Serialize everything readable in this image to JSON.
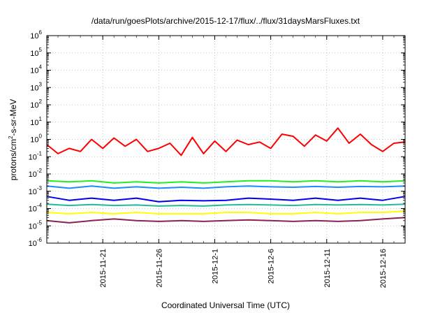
{
  "chart_data": {
    "type": "line",
    "title": "/data/run/goesPlots/archive/2015-12-17/flux/../flux/31daysMarsFluxes.txt",
    "xlabel": "Coordinated Universal Time (UTC)",
    "ylabel_parts": [
      "protons/cm",
      "2",
      "-s-sr-MeV"
    ],
    "y_scale": "log",
    "ylim": [
      1e-06,
      1000000.0
    ],
    "xlim": [
      "2015-11-16",
      "2015-12-18"
    ],
    "grid": true,
    "legend": "none",
    "x_ticks": [
      "2015-11-21",
      "2015-11-26",
      "2015-12-1",
      "2015-12-6",
      "2015-12-11",
      "2015-12-16"
    ],
    "x_tick_dates": [
      "2015-11-21",
      "2015-11-26",
      "2015-12-01",
      "2015-12-06",
      "2015-12-11",
      "2015-12-16"
    ],
    "y_ticks": [
      {
        "base": "10",
        "exp": "-6",
        "value": 1e-06
      },
      {
        "base": "10",
        "exp": "-5",
        "value": 1e-05
      },
      {
        "base": "10",
        "exp": "-4",
        "value": 0.0001
      },
      {
        "base": "10",
        "exp": "-3",
        "value": 0.001
      },
      {
        "base": "10",
        "exp": "-2",
        "value": 0.01
      },
      {
        "base": "10",
        "exp": "-1",
        "value": 0.1
      },
      {
        "base": "10",
        "exp": "0",
        "value": 1
      },
      {
        "base": "10",
        "exp": "1",
        "value": 10
      },
      {
        "base": "10",
        "exp": "2",
        "value": 100
      },
      {
        "base": "10",
        "exp": "3",
        "value": 1000
      },
      {
        "base": "10",
        "exp": "4",
        "value": 10000
      },
      {
        "base": "10",
        "exp": "5",
        "value": 100000
      },
      {
        "base": "10",
        "exp": "6",
        "value": 1000000
      }
    ],
    "series": [
      {
        "color": "#ff0000",
        "values": [
          {
            "x": "2015-11-16",
            "y": 0.5
          },
          {
            "x": "2015-11-17",
            "y": 0.15
          },
          {
            "x": "2015-11-18",
            "y": 0.3
          },
          {
            "x": "2015-11-19",
            "y": 0.2
          },
          {
            "x": "2015-11-20",
            "y": 1.0
          },
          {
            "x": "2015-11-21",
            "y": 0.3
          },
          {
            "x": "2015-11-22",
            "y": 1.2
          },
          {
            "x": "2015-11-23",
            "y": 0.4
          },
          {
            "x": "2015-11-24",
            "y": 1.0
          },
          {
            "x": "2015-11-25",
            "y": 0.2
          },
          {
            "x": "2015-11-26",
            "y": 0.3
          },
          {
            "x": "2015-11-27",
            "y": 0.6
          },
          {
            "x": "2015-11-28",
            "y": 0.12
          },
          {
            "x": "2015-11-29",
            "y": 1.3
          },
          {
            "x": "2015-11-30",
            "y": 0.15
          },
          {
            "x": "2015-12-01",
            "y": 0.8
          },
          {
            "x": "2015-12-02",
            "y": 0.2
          },
          {
            "x": "2015-12-03",
            "y": 0.9
          },
          {
            "x": "2015-12-04",
            "y": 0.5
          },
          {
            "x": "2015-12-05",
            "y": 0.7
          },
          {
            "x": "2015-12-06",
            "y": 0.3
          },
          {
            "x": "2015-12-07",
            "y": 2.0
          },
          {
            "x": "2015-12-08",
            "y": 1.5
          },
          {
            "x": "2015-12-09",
            "y": 0.4
          },
          {
            "x": "2015-12-10",
            "y": 1.8
          },
          {
            "x": "2015-12-11",
            "y": 0.8
          },
          {
            "x": "2015-12-12",
            "y": 4.5
          },
          {
            "x": "2015-12-13",
            "y": 0.6
          },
          {
            "x": "2015-12-14",
            "y": 2.0
          },
          {
            "x": "2015-12-15",
            "y": 0.5
          },
          {
            "x": "2015-12-16",
            "y": 0.2
          },
          {
            "x": "2015-12-17",
            "y": 0.6
          },
          {
            "x": "2015-12-18",
            "y": 0.7
          }
        ]
      },
      {
        "color": "#22ee22",
        "values": [
          {
            "x": "2015-11-16",
            "y": 0.004
          },
          {
            "x": "2015-11-18",
            "y": 0.0035
          },
          {
            "x": "2015-11-20",
            "y": 0.004
          },
          {
            "x": "2015-11-22",
            "y": 0.003
          },
          {
            "x": "2015-11-24",
            "y": 0.0035
          },
          {
            "x": "2015-11-26",
            "y": 0.003
          },
          {
            "x": "2015-11-28",
            "y": 0.0035
          },
          {
            "x": "2015-11-30",
            "y": 0.003
          },
          {
            "x": "2015-12-02",
            "y": 0.0035
          },
          {
            "x": "2015-12-04",
            "y": 0.004
          },
          {
            "x": "2015-12-06",
            "y": 0.004
          },
          {
            "x": "2015-12-08",
            "y": 0.0035
          },
          {
            "x": "2015-12-10",
            "y": 0.004
          },
          {
            "x": "2015-12-12",
            "y": 0.0035
          },
          {
            "x": "2015-12-14",
            "y": 0.004
          },
          {
            "x": "2015-12-16",
            "y": 0.0035
          },
          {
            "x": "2015-12-18",
            "y": 0.004
          }
        ]
      },
      {
        "color": "#1a8cff",
        "values": [
          {
            "x": "2015-11-16",
            "y": 0.002
          },
          {
            "x": "2015-11-18",
            "y": 0.0015
          },
          {
            "x": "2015-11-20",
            "y": 0.002
          },
          {
            "x": "2015-11-22",
            "y": 0.0015
          },
          {
            "x": "2015-11-24",
            "y": 0.0018
          },
          {
            "x": "2015-11-26",
            "y": 0.0015
          },
          {
            "x": "2015-11-28",
            "y": 0.0017
          },
          {
            "x": "2015-11-30",
            "y": 0.0015
          },
          {
            "x": "2015-12-02",
            "y": 0.0018
          },
          {
            "x": "2015-12-04",
            "y": 0.002
          },
          {
            "x": "2015-12-06",
            "y": 0.0018
          },
          {
            "x": "2015-12-08",
            "y": 0.0017
          },
          {
            "x": "2015-12-10",
            "y": 0.0019
          },
          {
            "x": "2015-12-12",
            "y": 0.0017
          },
          {
            "x": "2015-12-14",
            "y": 0.0019
          },
          {
            "x": "2015-12-16",
            "y": 0.0018
          },
          {
            "x": "2015-12-18",
            "y": 0.002
          }
        ]
      },
      {
        "color": "#0000ee",
        "values": [
          {
            "x": "2015-11-16",
            "y": 0.0005
          },
          {
            "x": "2015-11-18",
            "y": 0.0003
          },
          {
            "x": "2015-11-20",
            "y": 0.0004
          },
          {
            "x": "2015-11-22",
            "y": 0.0003
          },
          {
            "x": "2015-11-24",
            "y": 0.0004
          },
          {
            "x": "2015-11-26",
            "y": 0.00025
          },
          {
            "x": "2015-11-28",
            "y": 0.0003
          },
          {
            "x": "2015-11-30",
            "y": 0.00028
          },
          {
            "x": "2015-12-02",
            "y": 0.0003
          },
          {
            "x": "2015-12-04",
            "y": 0.0004
          },
          {
            "x": "2015-12-06",
            "y": 0.00035
          },
          {
            "x": "2015-12-08",
            "y": 0.0003
          },
          {
            "x": "2015-12-10",
            "y": 0.0004
          },
          {
            "x": "2015-12-12",
            "y": 0.0003
          },
          {
            "x": "2015-12-14",
            "y": 0.0004
          },
          {
            "x": "2015-12-16",
            "y": 0.0003
          },
          {
            "x": "2015-12-18",
            "y": 0.0005
          }
        ]
      },
      {
        "color": "#22bb99",
        "values": [
          {
            "x": "2015-11-16",
            "y": 0.00018
          },
          {
            "x": "2015-11-18",
            "y": 0.00015
          },
          {
            "x": "2015-11-20",
            "y": 0.00017
          },
          {
            "x": "2015-11-22",
            "y": 0.00015
          },
          {
            "x": "2015-11-24",
            "y": 0.00016
          },
          {
            "x": "2015-11-26",
            "y": 0.00014
          },
          {
            "x": "2015-11-28",
            "y": 0.00015
          },
          {
            "x": "2015-11-30",
            "y": 0.00014
          },
          {
            "x": "2015-12-02",
            "y": 0.00016
          },
          {
            "x": "2015-12-04",
            "y": 0.00017
          },
          {
            "x": "2015-12-06",
            "y": 0.00016
          },
          {
            "x": "2015-12-08",
            "y": 0.00015
          },
          {
            "x": "2015-12-10",
            "y": 0.00017
          },
          {
            "x": "2015-12-12",
            "y": 0.00016
          },
          {
            "x": "2015-12-14",
            "y": 0.00017
          },
          {
            "x": "2015-12-16",
            "y": 0.00016
          },
          {
            "x": "2015-12-18",
            "y": 0.00018
          }
        ]
      },
      {
        "color": "#ffff00",
        "values": [
          {
            "x": "2015-11-16",
            "y": 6e-05
          },
          {
            "x": "2015-11-18",
            "y": 5e-05
          },
          {
            "x": "2015-11-20",
            "y": 6e-05
          },
          {
            "x": "2015-11-22",
            "y": 5e-05
          },
          {
            "x": "2015-11-24",
            "y": 6e-05
          },
          {
            "x": "2015-11-26",
            "y": 5e-05
          },
          {
            "x": "2015-11-28",
            "y": 5e-05
          },
          {
            "x": "2015-11-30",
            "y": 5e-05
          },
          {
            "x": "2015-12-02",
            "y": 6e-05
          },
          {
            "x": "2015-12-04",
            "y": 6e-05
          },
          {
            "x": "2015-12-06",
            "y": 5e-05
          },
          {
            "x": "2015-12-08",
            "y": 5e-05
          },
          {
            "x": "2015-12-10",
            "y": 6e-05
          },
          {
            "x": "2015-12-12",
            "y": 5e-05
          },
          {
            "x": "2015-12-14",
            "y": 6e-05
          },
          {
            "x": "2015-12-16",
            "y": 6e-05
          },
          {
            "x": "2015-12-18",
            "y": 7e-05
          }
        ]
      },
      {
        "color": "#8b2252",
        "values": [
          {
            "x": "2015-11-16",
            "y": 2e-05
          },
          {
            "x": "2015-11-18",
            "y": 1.5e-05
          },
          {
            "x": "2015-11-20",
            "y": 2e-05
          },
          {
            "x": "2015-11-22",
            "y": 2.5e-05
          },
          {
            "x": "2015-11-24",
            "y": 2e-05
          },
          {
            "x": "2015-11-26",
            "y": 1.8e-05
          },
          {
            "x": "2015-11-28",
            "y": 2e-05
          },
          {
            "x": "2015-11-30",
            "y": 1.8e-05
          },
          {
            "x": "2015-12-02",
            "y": 2e-05
          },
          {
            "x": "2015-12-04",
            "y": 2.2e-05
          },
          {
            "x": "2015-12-06",
            "y": 2e-05
          },
          {
            "x": "2015-12-08",
            "y": 1.8e-05
          },
          {
            "x": "2015-12-10",
            "y": 2e-05
          },
          {
            "x": "2015-12-12",
            "y": 1.8e-05
          },
          {
            "x": "2015-12-14",
            "y": 2e-05
          },
          {
            "x": "2015-12-16",
            "y": 2.5e-05
          },
          {
            "x": "2015-12-18",
            "y": 3e-05
          }
        ]
      }
    ]
  }
}
